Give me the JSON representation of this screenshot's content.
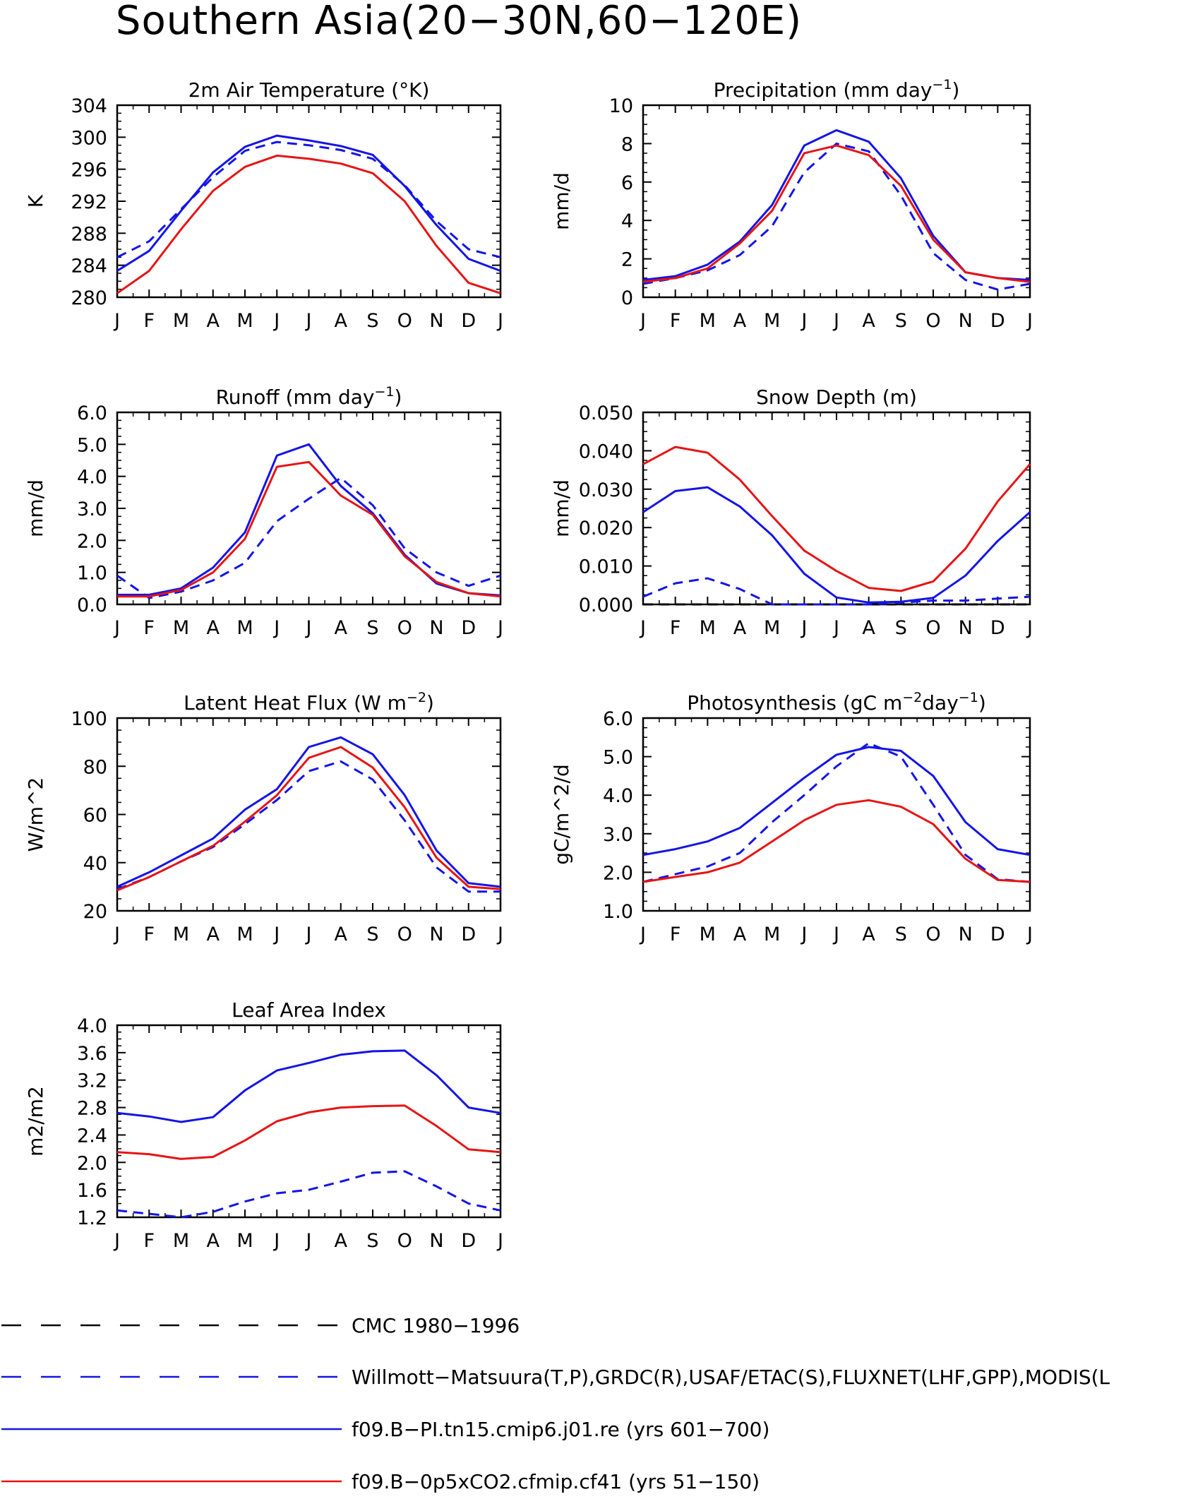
{
  "title": "Southern Asia(20−30N,60−120E)",
  "months": [
    "J",
    "F",
    "M",
    "A",
    "M",
    "J",
    "J",
    "A",
    "S",
    "O",
    "N",
    "D",
    "J"
  ],
  "colors": {
    "obs_dashed_black": "#000000",
    "obs_dashed_blue": "#1414e6",
    "blue": "#1414e6",
    "red": "#e61414"
  },
  "legend": [
    {
      "label": "CMC 1980−1996",
      "color": "#000000",
      "dash": true
    },
    {
      "label": "Willmott−Matsuura(T,P),GRDC(R),USAF/ETAC(S),FLUXNET(LHF,GPP),MODIS(L",
      "color": "#1414e6",
      "dash": true
    },
    {
      "label": "f09.B−PI.tn15.cmip6.j01.re (yrs 601−700)",
      "color": "#1414e6",
      "dash": false
    },
    {
      "label": "f09.B−0p5xCO2.cfmip.cf41 (yrs 51−150)",
      "color": "#e61414",
      "dash": false
    }
  ],
  "chart_data": [
    {
      "type": "line",
      "title": "2m Air Temperature (°K)",
      "ylabel": "K",
      "ylim": [
        280,
        304
      ],
      "yticks": [
        "280",
        "284",
        "288",
        "292",
        "296",
        "300",
        "304"
      ],
      "x": [
        "J",
        "F",
        "M",
        "A",
        "M",
        "J",
        "J",
        "A",
        "S",
        "O",
        "N",
        "D",
        "J"
      ],
      "series": [
        {
          "key": "obs_blue_dash",
          "color": "#1414e6",
          "dash": true,
          "values": [
            285.0,
            287.0,
            291.0,
            295.0,
            298.3,
            299.4,
            299.0,
            298.4,
            297.3,
            294.0,
            289.5,
            286.0,
            285.0
          ]
        },
        {
          "key": "pi",
          "color": "#1414e6",
          "dash": false,
          "values": [
            283.3,
            285.8,
            290.8,
            295.6,
            298.8,
            300.2,
            299.6,
            298.9,
            297.8,
            293.9,
            289.0,
            284.8,
            283.3
          ]
        },
        {
          "key": "co2",
          "color": "#e61414",
          "dash": false,
          "values": [
            280.5,
            283.3,
            288.5,
            293.3,
            296.3,
            297.7,
            297.3,
            296.7,
            295.5,
            292.0,
            286.4,
            281.8,
            280.5
          ]
        }
      ]
    },
    {
      "type": "line",
      "title": "Precipitation (mm day",
      "title_sup": "−1",
      "title_end": ")",
      "ylabel": "mm/d",
      "ylim": [
        0,
        10
      ],
      "yticks": [
        "0",
        "2",
        "4",
        "6",
        "8",
        "10"
      ],
      "x": [
        "J",
        "F",
        "M",
        "A",
        "M",
        "J",
        "J",
        "A",
        "S",
        "O",
        "N",
        "D",
        "J"
      ],
      "series": [
        {
          "key": "obs_blue_dash",
          "color": "#1414e6",
          "dash": true,
          "values": [
            0.7,
            1.0,
            1.4,
            2.2,
            3.7,
            6.5,
            8.0,
            7.6,
            5.3,
            2.3,
            0.9,
            0.4,
            0.7
          ]
        },
        {
          "key": "pi",
          "color": "#1414e6",
          "dash": false,
          "values": [
            0.9,
            1.1,
            1.7,
            2.9,
            4.8,
            7.9,
            8.7,
            8.1,
            6.2,
            3.2,
            1.3,
            1.0,
            0.9
          ]
        },
        {
          "key": "co2",
          "color": "#e61414",
          "dash": false,
          "values": [
            0.8,
            1.0,
            1.5,
            2.8,
            4.5,
            7.5,
            7.9,
            7.4,
            5.8,
            3.0,
            1.3,
            1.0,
            0.8
          ]
        }
      ]
    },
    {
      "type": "line",
      "title": "Runoff (mm day",
      "title_sup": "−1",
      "title_end": ")",
      "ylabel": "mm/d",
      "ylim": [
        0,
        6
      ],
      "yticks": [
        "0.0",
        "1.0",
        "2.0",
        "3.0",
        "4.0",
        "5.0",
        "6.0"
      ],
      "x": [
        "J",
        "F",
        "M",
        "A",
        "M",
        "J",
        "J",
        "A",
        "S",
        "O",
        "N",
        "D",
        "J"
      ],
      "series": [
        {
          "key": "obs_blue_dash",
          "color": "#1414e6",
          "dash": true,
          "values": [
            0.9,
            0.2,
            0.4,
            0.75,
            1.3,
            2.6,
            3.3,
            3.95,
            3.1,
            1.75,
            1.0,
            0.58,
            0.9
          ]
        },
        {
          "key": "pi",
          "color": "#1414e6",
          "dash": false,
          "values": [
            0.3,
            0.3,
            0.5,
            1.15,
            2.25,
            4.65,
            5.0,
            3.7,
            2.85,
            1.55,
            0.65,
            0.35,
            0.28
          ]
        },
        {
          "key": "co2",
          "color": "#e61414",
          "dash": false,
          "values": [
            0.25,
            0.25,
            0.45,
            1.0,
            2.05,
            4.3,
            4.45,
            3.4,
            2.8,
            1.5,
            0.7,
            0.35,
            0.25
          ]
        }
      ]
    },
    {
      "type": "line",
      "title": "Snow Depth (m)",
      "ylabel": "mm/d",
      "ylim": [
        0,
        0.05
      ],
      "yticks": [
        "0.000",
        "0.010",
        "0.020",
        "0.030",
        "0.040",
        "0.050"
      ],
      "x": [
        "J",
        "F",
        "M",
        "A",
        "M",
        "J",
        "J",
        "A",
        "S",
        "O",
        "N",
        "D",
        "J"
      ],
      "series": [
        {
          "key": "obs_black_dash",
          "color": "#000000",
          "dash": true,
          "values": [
            0.0,
            0.0,
            0.0,
            0.0,
            0.0,
            0.0,
            0.0,
            0.0,
            0.0,
            0.0,
            0.0,
            0.0,
            0.0
          ]
        },
        {
          "key": "obs_blue_dash",
          "color": "#1414e6",
          "dash": true,
          "values": [
            0.002,
            0.0055,
            0.0068,
            0.004,
            0.0,
            0.0,
            0.0,
            0.0,
            0.0005,
            0.001,
            0.001,
            0.0015,
            0.002
          ]
        },
        {
          "key": "pi",
          "color": "#1414e6",
          "dash": false,
          "values": [
            0.024,
            0.0295,
            0.0305,
            0.0255,
            0.018,
            0.008,
            0.0018,
            0.0005,
            0.0007,
            0.0017,
            0.0075,
            0.0165,
            0.024
          ]
        },
        {
          "key": "co2",
          "color": "#e61414",
          "dash": false,
          "values": [
            0.0365,
            0.041,
            0.0395,
            0.0325,
            0.023,
            0.014,
            0.0087,
            0.0043,
            0.0035,
            0.006,
            0.0145,
            0.0268,
            0.0365
          ]
        }
      ]
    },
    {
      "type": "line",
      "title": "Latent Heat Flux (W m",
      "title_sup": "−2",
      "title_end": ")",
      "ylabel": "W/m^2",
      "ylim": [
        20,
        100
      ],
      "yticks": [
        "20",
        "40",
        "60",
        "80",
        "100"
      ],
      "x": [
        "J",
        "F",
        "M",
        "A",
        "M",
        "J",
        "J",
        "A",
        "S",
        "O",
        "N",
        "D",
        "J"
      ],
      "series": [
        {
          "key": "obs_blue_dash",
          "color": "#1414e6",
          "dash": true,
          "values": [
            29,
            34,
            40.5,
            46.5,
            56,
            66,
            78,
            82,
            74.5,
            57.5,
            38,
            28,
            28
          ]
        },
        {
          "key": "pi",
          "color": "#1414e6",
          "dash": false,
          "values": [
            30,
            36,
            43,
            50,
            62,
            70.5,
            88,
            92,
            85,
            68,
            45,
            31.5,
            30
          ]
        },
        {
          "key": "co2",
          "color": "#e61414",
          "dash": false,
          "values": [
            28.5,
            34,
            40.5,
            47,
            57,
            68,
            83.5,
            88,
            79.5,
            63,
            42,
            30,
            29
          ]
        }
      ]
    },
    {
      "type": "line",
      "title": "Photosynthesis (gC m",
      "title_sup": "−2",
      "title_mid": "day",
      "title_sup2": "−1",
      "title_end": ")",
      "ylabel": "gC/m^2/d",
      "ylim": [
        1.0,
        6.0
      ],
      "yticks": [
        "1.0",
        "2.0",
        "3.0",
        "4.0",
        "5.0",
        "6.0"
      ],
      "x": [
        "J",
        "F",
        "M",
        "A",
        "M",
        "J",
        "J",
        "A",
        "S",
        "O",
        "N",
        "D",
        "J"
      ],
      "series": [
        {
          "key": "obs_blue_dash",
          "color": "#1414e6",
          "dash": true,
          "values": [
            1.75,
            1.95,
            2.15,
            2.5,
            3.3,
            4.0,
            4.75,
            5.35,
            5.0,
            3.75,
            2.45,
            1.82,
            1.75
          ]
        },
        {
          "key": "pi",
          "color": "#1414e6",
          "dash": false,
          "values": [
            2.45,
            2.6,
            2.8,
            3.15,
            3.8,
            4.45,
            5.05,
            5.25,
            5.15,
            4.5,
            3.3,
            2.6,
            2.45
          ]
        },
        {
          "key": "co2",
          "color": "#e61414",
          "dash": false,
          "values": [
            1.75,
            1.88,
            2.0,
            2.25,
            2.8,
            3.35,
            3.75,
            3.87,
            3.7,
            3.25,
            2.35,
            1.8,
            1.75
          ]
        }
      ]
    },
    {
      "type": "line",
      "title": "Leaf Area Index",
      "ylabel": "m2/m2",
      "ylim": [
        1.2,
        4.0
      ],
      "yticks": [
        "1.2",
        "1.6",
        "2.0",
        "2.4",
        "2.8",
        "3.2",
        "3.6",
        "4.0"
      ],
      "x": [
        "J",
        "F",
        "M",
        "A",
        "M",
        "J",
        "J",
        "A",
        "S",
        "O",
        "N",
        "D",
        "J"
      ],
      "series": [
        {
          "key": "obs_blue_dash",
          "color": "#1414e6",
          "dash": true,
          "values": [
            1.3,
            1.25,
            1.2,
            1.28,
            1.43,
            1.55,
            1.6,
            1.72,
            1.85,
            1.87,
            1.65,
            1.4,
            1.3
          ]
        },
        {
          "key": "pi",
          "color": "#1414e6",
          "dash": false,
          "values": [
            2.72,
            2.67,
            2.59,
            2.66,
            3.05,
            3.34,
            3.45,
            3.57,
            3.62,
            3.63,
            3.27,
            2.8,
            2.72
          ]
        },
        {
          "key": "co2",
          "color": "#e61414",
          "dash": false,
          "values": [
            2.15,
            2.12,
            2.05,
            2.08,
            2.32,
            2.6,
            2.73,
            2.8,
            2.82,
            2.83,
            2.53,
            2.19,
            2.15
          ]
        }
      ]
    }
  ]
}
